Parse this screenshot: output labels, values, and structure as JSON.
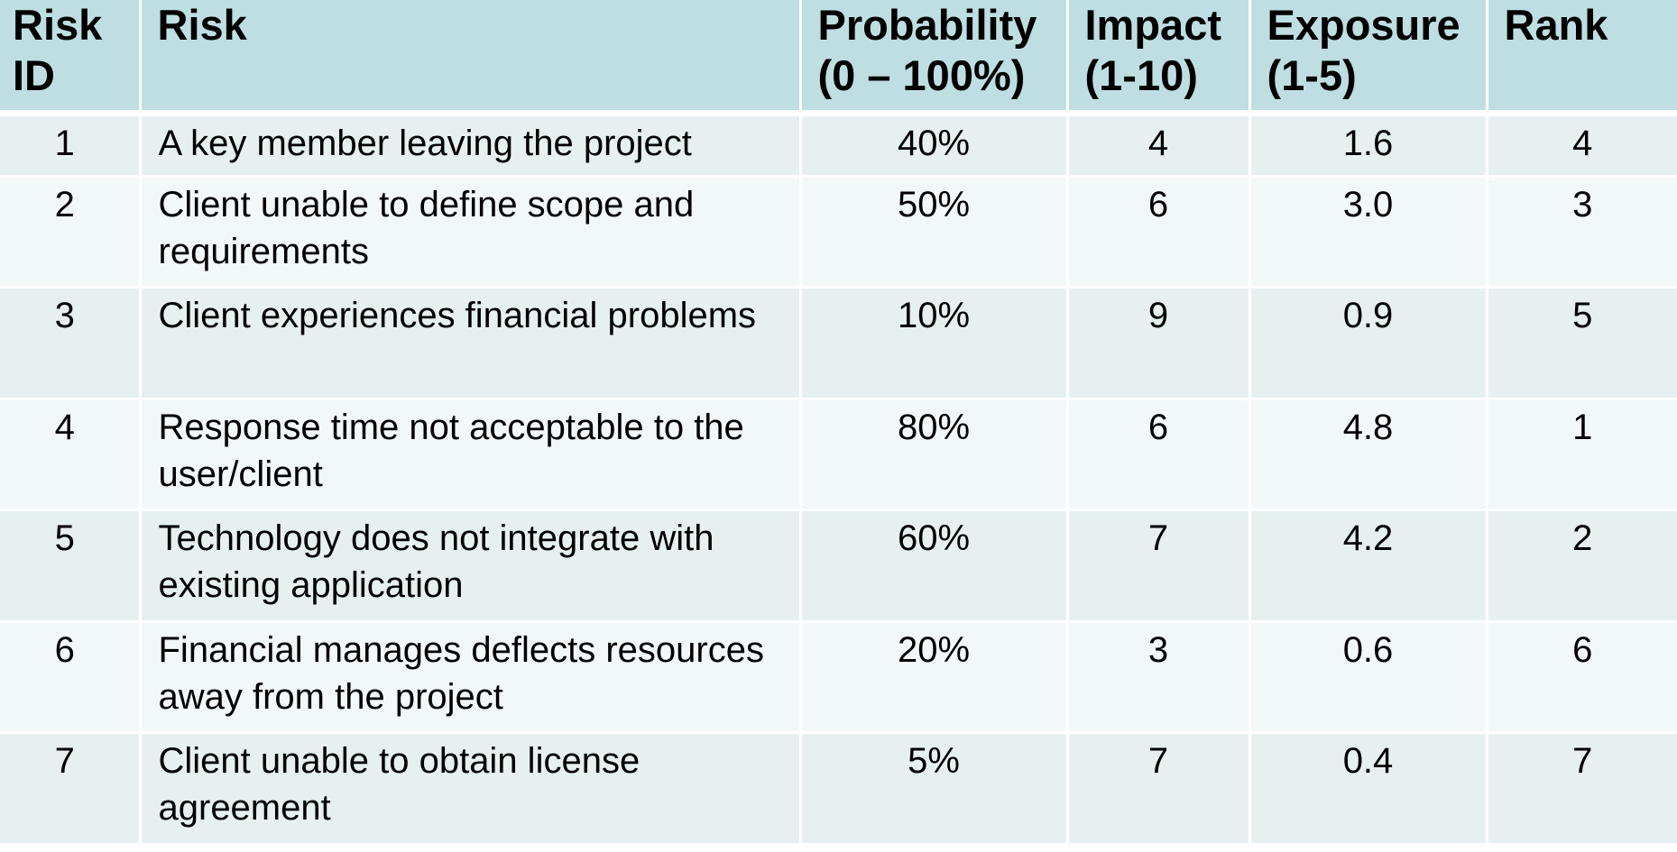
{
  "table": {
    "headers": {
      "risk_id": "Risk\nID",
      "risk": "Risk",
      "probability": "Probability\n(0 – 100%)",
      "impact": "Impact\n(1-10)",
      "exposure": "Exposure\n(1-5)",
      "rank": "Rank"
    },
    "rows": [
      {
        "id": "1",
        "risk": "A key member leaving the project",
        "probability": "40%",
        "impact": "4",
        "exposure": "1.6",
        "rank": "4"
      },
      {
        "id": "2",
        "risk": "Client unable to define scope and requirements",
        "probability": "50%",
        "impact": "6",
        "exposure": "3.0",
        "rank": "3"
      },
      {
        "id": "3",
        "risk": "Client experiences financial problems",
        "probability": "10%",
        "impact": "9",
        "exposure": "0.9",
        "rank": "5"
      },
      {
        "id": "4",
        "risk": "Response time not acceptable to the user/client",
        "probability": "80%",
        "impact": "6",
        "exposure": "4.8",
        "rank": "1"
      },
      {
        "id": "5",
        "risk": "Technology does not integrate with existing application",
        "probability": "60%",
        "impact": "7",
        "exposure": "4.2",
        "rank": "2"
      },
      {
        "id": "6",
        "risk": "Financial manages deflects resources away from the project",
        "probability": "20%",
        "impact": "3",
        "exposure": "0.6",
        "rank": "6"
      },
      {
        "id": "7",
        "risk": "Client unable to obtain license agreement",
        "probability": "5%",
        "impact": "7",
        "exposure": "0.4",
        "rank": "7"
      }
    ]
  },
  "colors": {
    "header_bg": "#bedee2",
    "row_odd_bg": "#e6f0f1",
    "row_even_bg": "#f2f7f8",
    "divider": "#ffffff"
  }
}
